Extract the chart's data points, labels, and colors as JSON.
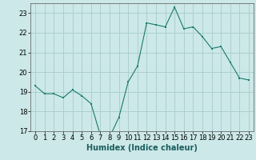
{
  "x": [
    0,
    1,
    2,
    3,
    4,
    5,
    6,
    7,
    8,
    9,
    10,
    11,
    12,
    13,
    14,
    15,
    16,
    17,
    18,
    19,
    20,
    21,
    22,
    23
  ],
  "y": [
    19.3,
    18.9,
    18.9,
    18.7,
    19.1,
    18.8,
    18.4,
    16.8,
    16.7,
    17.7,
    19.5,
    20.3,
    22.5,
    22.4,
    22.3,
    23.3,
    22.2,
    22.3,
    21.8,
    21.2,
    21.3,
    20.5,
    19.7,
    19.6
  ],
  "line_color": "#1a7a6e",
  "marker_color": "#1a7a6e",
  "bg_color": "#cce8e8",
  "grid_color": "#aacccc",
  "xlabel": "Humidex (Indice chaleur)",
  "ylim": [
    17,
    23.5
  ],
  "xlim": [
    -0.5,
    23.5
  ],
  "yticks": [
    17,
    18,
    19,
    20,
    21,
    22,
    23
  ],
  "label_fontsize": 7,
  "tick_fontsize": 6
}
